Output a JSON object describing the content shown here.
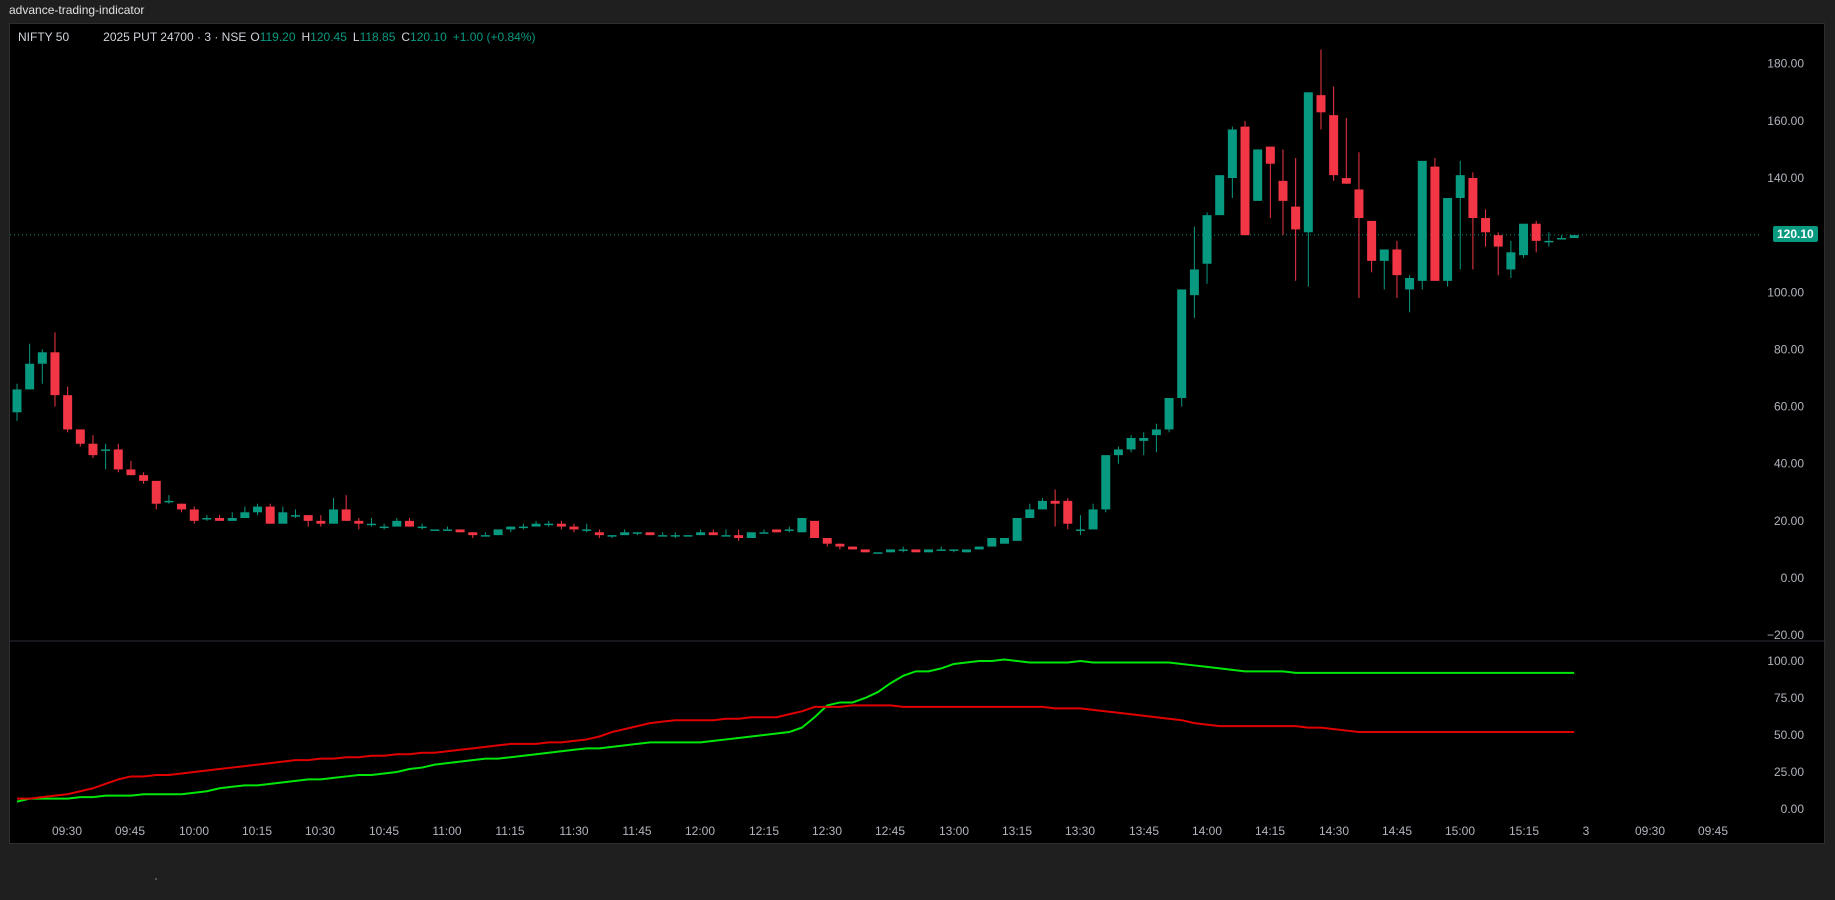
{
  "window": {
    "title": "advance-trading-indicator"
  },
  "legend": {
    "symbol": "NIFTY 50",
    "contract": "2025 PUT 24700 · 3 · NSE",
    "open_label": "O",
    "open": "119.20",
    "high_label": "H",
    "high": "120.45",
    "low_label": "L",
    "low": "118.85",
    "close_label": "C",
    "close": "120.10",
    "change": "+1.00 (+0.84%)"
  },
  "last_price_badge": "120.10",
  "colors": {
    "bull": "#089981",
    "bear": "#F23645",
    "line_green": "#00e60a",
    "line_red": "#e00000",
    "background": "#000000"
  },
  "chart_data": {
    "type": "candlestick",
    "title": "NIFTY 50 2025 PUT 24700 · 3 · NSE",
    "interval_minutes": 3,
    "price_axis": {
      "ticks": [
        "180.00",
        "160.00",
        "140.00",
        "100.00",
        "80.00",
        "60.00",
        "40.00",
        "20.00",
        "0.00",
        "-20.00"
      ],
      "range": [
        -20,
        190
      ]
    },
    "indicator_axis": {
      "ticks": [
        "100.00",
        "75.00",
        "50.00",
        "25.00",
        "0.00"
      ],
      "range": [
        0,
        100
      ]
    },
    "time_axis": {
      "ticks": [
        "09:30",
        "09:45",
        "10:00",
        "10:15",
        "10:30",
        "10:45",
        "11:00",
        "11:15",
        "11:30",
        "11:45",
        "12:00",
        "12:15",
        "12:30",
        "12:45",
        "13:00",
        "13:15",
        "13:30",
        "13:45",
        "14:00",
        "14:15",
        "14:30",
        "14:45",
        "15:00",
        "15:15",
        "3",
        "09:30",
        "09:45"
      ]
    },
    "last_price": 120.1,
    "candles_ohlc": [
      [
        58,
        68,
        55,
        66
      ],
      [
        66,
        82,
        66,
        75
      ],
      [
        75,
        80,
        68,
        79
      ],
      [
        79,
        86,
        60,
        64
      ],
      [
        64,
        67,
        51,
        52
      ],
      [
        52,
        52,
        46,
        47
      ],
      [
        47,
        50,
        42,
        43
      ],
      [
        45,
        47,
        38,
        45
      ],
      [
        45,
        47,
        37,
        38
      ],
      [
        38,
        41,
        36,
        36
      ],
      [
        36,
        37,
        33,
        34
      ],
      [
        34,
        34,
        24,
        26
      ],
      [
        27,
        29,
        26,
        27
      ],
      [
        26,
        26,
        23,
        24
      ],
      [
        24,
        25,
        19,
        20
      ],
      [
        21,
        22,
        20,
        21
      ],
      [
        21,
        22,
        20,
        20
      ],
      [
        20,
        23,
        20,
        21
      ],
      [
        21,
        25,
        21,
        23
      ],
      [
        23,
        26,
        22,
        25
      ],
      [
        25,
        26,
        19,
        19
      ],
      [
        19,
        25,
        19,
        23
      ],
      [
        22,
        24,
        21,
        22
      ],
      [
        22,
        22,
        18,
        20
      ],
      [
        20,
        22,
        18,
        19
      ],
      [
        19,
        28,
        19,
        24
      ],
      [
        24,
        29,
        20,
        20
      ],
      [
        20,
        21,
        17,
        19
      ],
      [
        19,
        21,
        18,
        19
      ],
      [
        18,
        19,
        17,
        18
      ],
      [
        18,
        21,
        18,
        20
      ],
      [
        20,
        21,
        18,
        18
      ],
      [
        18,
        19,
        17,
        18
      ],
      [
        17,
        17,
        17,
        17
      ],
      [
        17,
        18,
        17,
        17
      ],
      [
        17,
        17,
        16,
        16
      ],
      [
        16,
        16,
        14,
        15
      ],
      [
        15,
        16,
        15,
        15
      ],
      [
        15,
        17,
        15,
        17
      ],
      [
        17,
        18,
        16,
        18
      ],
      [
        18,
        19,
        17,
        18
      ],
      [
        18,
        20,
        18,
        19
      ],
      [
        19,
        20,
        18,
        19
      ],
      [
        19,
        20,
        17,
        18
      ],
      [
        18,
        19,
        16,
        17
      ],
      [
        17,
        19,
        16,
        17
      ],
      [
        16,
        17,
        14,
        15
      ],
      [
        15,
        15,
        14,
        15
      ],
      [
        15,
        17,
        15,
        16
      ],
      [
        16,
        16,
        15,
        16
      ],
      [
        16,
        16,
        15,
        15
      ],
      [
        15,
        16,
        15,
        15
      ],
      [
        15,
        16,
        14,
        15
      ],
      [
        15,
        15,
        15,
        15
      ],
      [
        15,
        17,
        15,
        16
      ],
      [
        16,
        17,
        15,
        15
      ],
      [
        15,
        17,
        15,
        15
      ],
      [
        15,
        17,
        13,
        14
      ],
      [
        14,
        16,
        14,
        16
      ],
      [
        16,
        17,
        16,
        16
      ],
      [
        17,
        17,
        16,
        16
      ],
      [
        17,
        18,
        16,
        17
      ],
      [
        16,
        21,
        16,
        21
      ],
      [
        20,
        20,
        14,
        14
      ],
      [
        14,
        14,
        11,
        12
      ],
      [
        12,
        12,
        10,
        11
      ],
      [
        11,
        11,
        10,
        10
      ],
      [
        10,
        10,
        9,
        9
      ],
      [
        9,
        9,
        9,
        9
      ],
      [
        9,
        10,
        9,
        10
      ],
      [
        10,
        11,
        9,
        10
      ],
      [
        10,
        10,
        9,
        9
      ],
      [
        9,
        10,
        9,
        10
      ],
      [
        10,
        11,
        10,
        10
      ],
      [
        10,
        10,
        9,
        10
      ],
      [
        9,
        10,
        9,
        10
      ],
      [
        10,
        11,
        10,
        11
      ],
      [
        11,
        14,
        11,
        14
      ],
      [
        12,
        14,
        12,
        14
      ],
      [
        13,
        17,
        13,
        21
      ],
      [
        21,
        26,
        21,
        24
      ],
      [
        24,
        28,
        24,
        27
      ],
      [
        27,
        31,
        18,
        26
      ],
      [
        27,
        28,
        17,
        19
      ],
      [
        17,
        22,
        15,
        17
      ],
      [
        17,
        26,
        17,
        24
      ],
      [
        24,
        42,
        23,
        43
      ],
      [
        43,
        46,
        40,
        45
      ],
      [
        45,
        50,
        44,
        49
      ],
      [
        48,
        51,
        43,
        49
      ],
      [
        50,
        54,
        44,
        52
      ],
      [
        52,
        59,
        51,
        63
      ],
      [
        63,
        66,
        60,
        101
      ],
      [
        99,
        123,
        91,
        108
      ],
      [
        110,
        128,
        103,
        127
      ],
      [
        127,
        140,
        128,
        141
      ],
      [
        140,
        158,
        133,
        157
      ],
      [
        158,
        160,
        121,
        120
      ],
      [
        132,
        150,
        132,
        150
      ],
      [
        151,
        150,
        126,
        145
      ],
      [
        139,
        150,
        120,
        132
      ],
      [
        130,
        147,
        104,
        122
      ],
      [
        121,
        148,
        102,
        170
      ],
      [
        169,
        185,
        157,
        163
      ],
      [
        162,
        172,
        139,
        141
      ],
      [
        140,
        161,
        138,
        138
      ],
      [
        136,
        149,
        98,
        126
      ],
      [
        125,
        125,
        107,
        111
      ],
      [
        111,
        114,
        101,
        115
      ],
      [
        115,
        118,
        98,
        106
      ],
      [
        101,
        106,
        93,
        105
      ],
      [
        104,
        114,
        101,
        146
      ],
      [
        144,
        147,
        106,
        104
      ],
      [
        104,
        132,
        102,
        133
      ],
      [
        133,
        146,
        108,
        141
      ],
      [
        140,
        142,
        108,
        126
      ],
      [
        126,
        129,
        116,
        121
      ],
      [
        120,
        121,
        106,
        116
      ],
      [
        108,
        118,
        105,
        114
      ],
      [
        113,
        120,
        112,
        124
      ],
      [
        124,
        125,
        114,
        118
      ],
      [
        118,
        121,
        116,
        118
      ],
      [
        119,
        120,
        119,
        119
      ],
      [
        119,
        120,
        119,
        120
      ]
    ],
    "indicator_series": [
      {
        "name": "Green line",
        "color": "#00e60a",
        "values": [
          5,
          7,
          7,
          7,
          7,
          8,
          8,
          9,
          9,
          9,
          10,
          10,
          10,
          10,
          11,
          12,
          14,
          15,
          16,
          16,
          17,
          18,
          19,
          20,
          20,
          21,
          22,
          23,
          23,
          24,
          25,
          27,
          28,
          30,
          31,
          32,
          33,
          34,
          34,
          35,
          36,
          37,
          38,
          39,
          40,
          41,
          41,
          42,
          43,
          44,
          45,
          45,
          45,
          45,
          45,
          46,
          47,
          48,
          49,
          50,
          51,
          52,
          55,
          62,
          70,
          72,
          72,
          75,
          79,
          85,
          90,
          93,
          93,
          95,
          98,
          99,
          100,
          100,
          101,
          100,
          99,
          99,
          99,
          99,
          100,
          99,
          99,
          99,
          99,
          99,
          99,
          99,
          98,
          97,
          96,
          95,
          94,
          93,
          93,
          93,
          93,
          92,
          92,
          92,
          92,
          92,
          92,
          92,
          92,
          92,
          92,
          92,
          92,
          92,
          92,
          92,
          92,
          92,
          92,
          92,
          92,
          92,
          92,
          92
        ]
      },
      {
        "name": "Red line",
        "color": "#e00000",
        "values": [
          7,
          7,
          8,
          9,
          10,
          12,
          14,
          17,
          20,
          22,
          22,
          23,
          23,
          24,
          25,
          26,
          27,
          28,
          29,
          30,
          31,
          32,
          33,
          33,
          34,
          34,
          35,
          35,
          36,
          36,
          37,
          37,
          38,
          38,
          39,
          40,
          41,
          42,
          43,
          44,
          44,
          44,
          45,
          45,
          46,
          47,
          49,
          52,
          54,
          56,
          58,
          59,
          60,
          60,
          60,
          60,
          61,
          61,
          62,
          62,
          62,
          64,
          66,
          69,
          69,
          69,
          70,
          70,
          70,
          70,
          69,
          69,
          69,
          69,
          69,
          69,
          69,
          69,
          69,
          69,
          69,
          69,
          68,
          68,
          68,
          67,
          66,
          65,
          64,
          63,
          62,
          61,
          60,
          58,
          57,
          56,
          56,
          56,
          56,
          56,
          56,
          56,
          55,
          55,
          54,
          53,
          52,
          52,
          52,
          52,
          52,
          52,
          52,
          52,
          52,
          52,
          52,
          52,
          52,
          52,
          52,
          52,
          52,
          52
        ]
      }
    ]
  }
}
